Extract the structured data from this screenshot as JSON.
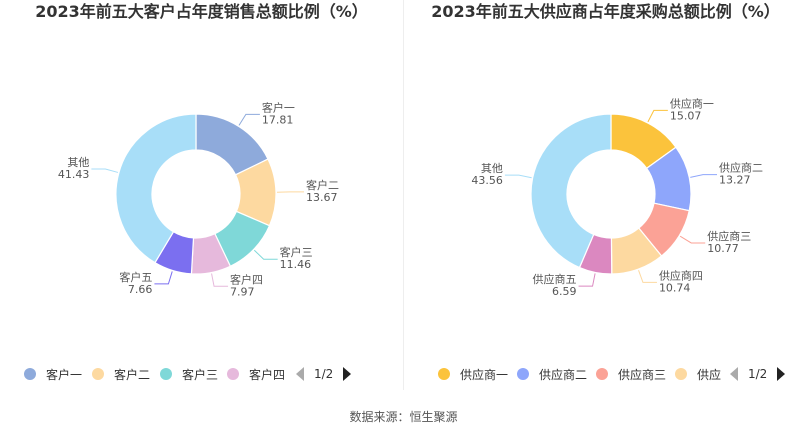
{
  "chart_data": [
    {
      "type": "pie",
      "title": "2023年前五大客户占年度销售总额比例（%）",
      "categories": [
        "客户一",
        "客户二",
        "客户三",
        "客户四",
        "客户五",
        "其他"
      ],
      "values": [
        17.81,
        13.67,
        11.46,
        7.97,
        7.66,
        41.43
      ],
      "value_labels": [
        "17.81",
        "13.67",
        "11.46",
        "7.97",
        "7.66",
        "41.43"
      ],
      "colors": [
        "#8eaadb",
        "#fdd9a0",
        "#7fd8d8",
        "#e6b9dc",
        "#7b6ff0",
        "#a8def8"
      ],
      "legend": {
        "position": "bottom",
        "items": [
          "客户一",
          "客户二",
          "客户三",
          "客户四"
        ],
        "page": "1/2"
      }
    },
    {
      "type": "pie",
      "title": "2023年前五大供应商占年度采购总额比例（%）",
      "categories": [
        "供应商一",
        "供应商二",
        "供应商三",
        "供应商四",
        "供应商五",
        "其他"
      ],
      "values": [
        15.07,
        13.27,
        10.77,
        10.74,
        6.59,
        43.56
      ],
      "value_labels": [
        "15.07",
        "13.27",
        "10.77",
        "10.74",
        "6.59",
        "43.56"
      ],
      "colors": [
        "#fbc33c",
        "#8ea6fb",
        "#fba296",
        "#fdd9a0",
        "#db88c0",
        "#a8def8"
      ],
      "legend": {
        "position": "bottom",
        "items": [
          "供应商一",
          "供应商二",
          "供应商三",
          "供应"
        ],
        "page": "1/2"
      }
    }
  ],
  "footer": "数据来源：恒生聚源"
}
